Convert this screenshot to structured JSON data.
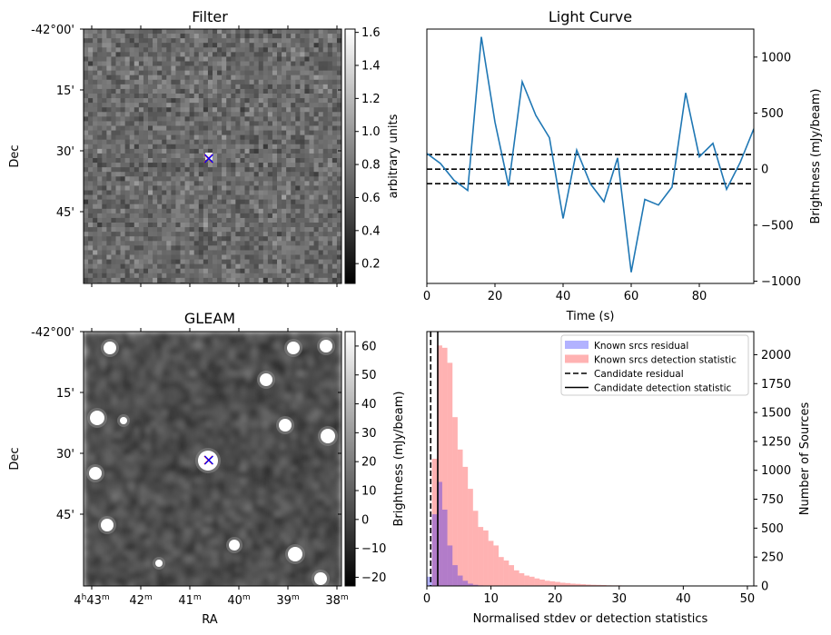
{
  "chart_data": [
    {
      "panel": "filter",
      "type": "heatmap",
      "title": "Filter",
      "xlabel": "",
      "ylabel": "Dec",
      "ytick_labels": [
        "-42°00'",
        "15'",
        "30'",
        "45'"
      ],
      "colorbar_label": "arbitrary units",
      "colorbar_ticks": [
        "0.2",
        "0.4",
        "0.6",
        "0.8",
        "1.0",
        "1.2",
        "1.4",
        "1.6"
      ],
      "colorbar_range": [
        0.08,
        1.62
      ],
      "colormap": "gray",
      "markers": [
        {
          "symbol": "x",
          "color": "#ff0000",
          "label": "red cross"
        },
        {
          "symbol": "x",
          "color": "#0000ff",
          "label": "blue cross"
        }
      ]
    },
    {
      "panel": "light_curve",
      "type": "line",
      "title": "Light Curve",
      "xlabel": "Time (s)",
      "ylabel": "Brightness (mJy/beam)",
      "xlim": [
        0,
        96
      ],
      "ylim": [
        -1020,
        1250
      ],
      "xticks": [
        "0",
        "20",
        "40",
        "60",
        "80"
      ],
      "yticks": [
        "−1000",
        "−500",
        "0",
        "500",
        "1000"
      ],
      "series": [
        {
          "color": "#1f77b4",
          "x": [
            0,
            4,
            8,
            12,
            16,
            20,
            24,
            28,
            32,
            36,
            40,
            44,
            48,
            52,
            56,
            60,
            64,
            68,
            72,
            76,
            80,
            84,
            88,
            92,
            96
          ],
          "y": [
            140,
            50,
            -100,
            -190,
            1180,
            420,
            -150,
            780,
            480,
            280,
            -440,
            170,
            -130,
            -290,
            100,
            -920,
            -270,
            -320,
            -160,
            680,
            110,
            230,
            -180,
            60,
            360
          ]
        }
      ],
      "hlines": [
        {
          "y": 130,
          "style": "dashed",
          "color": "#000000"
        },
        {
          "y": 0,
          "style": "dashed",
          "color": "#000000"
        },
        {
          "y": -130,
          "style": "dashed",
          "color": "#000000"
        }
      ],
      "grid": false
    },
    {
      "panel": "gleam",
      "type": "heatmap",
      "title": "GLEAM",
      "xlabel": "RA",
      "ylabel": "Dec",
      "xtick_labels": [
        {
          "h": "4",
          "hs": "h",
          "m": "43",
          "ms": "m"
        },
        {
          "m": "42",
          "ms": "m"
        },
        {
          "m": "41",
          "ms": "m"
        },
        {
          "m": "40",
          "ms": "m"
        },
        {
          "m": "39",
          "ms": "m"
        },
        {
          "m": "38",
          "ms": "m"
        }
      ],
      "ytick_labels": [
        "-42°00'",
        "15'",
        "30'",
        "45'"
      ],
      "colorbar_label": "Brightness (mJy/beam)",
      "colorbar_ticks": [
        "−20",
        "−10",
        "0",
        "10",
        "20",
        "30",
        "40",
        "50",
        "60"
      ],
      "colorbar_range": [
        -23,
        65
      ],
      "colormap": "gray",
      "markers": [
        {
          "symbol": "x",
          "color": "#ff0000",
          "label": "red cross"
        },
        {
          "symbol": "x",
          "color": "#0000ff",
          "label": "blue cross"
        }
      ]
    },
    {
      "panel": "histogram",
      "type": "bar",
      "title": "",
      "xlabel": "Normalised stdev or detection statistics",
      "ylabel": "Number of Sources",
      "xlim": [
        0,
        51
      ],
      "ylim": [
        0,
        2200
      ],
      "xticks": [
        "0",
        "10",
        "20",
        "30",
        "40",
        "50"
      ],
      "yticks": [
        "0",
        "250",
        "500",
        "750",
        "1000",
        "1250",
        "1500",
        "1750",
        "2000"
      ],
      "bin_width": 0.8,
      "series": [
        {
          "name": "Known srcs residual",
          "color": "#0000ff",
          "alpha": 0.3,
          "bin_start": 0,
          "values": [
            80,
            620,
            900,
            660,
            350,
            180,
            90,
            45,
            20,
            10,
            5,
            3
          ]
        },
        {
          "name": "Known srcs detection statistic",
          "color": "#ff0000",
          "alpha": 0.3,
          "bin_start": 0,
          "values": [
            0,
            1100,
            2080,
            2060,
            1930,
            1460,
            1180,
            1030,
            840,
            650,
            510,
            480,
            390,
            350,
            250,
            220,
            180,
            135,
            110,
            90,
            80,
            65,
            55,
            45,
            40,
            35,
            28,
            25,
            20,
            18,
            15,
            12,
            10,
            9,
            8,
            6,
            5,
            5,
            4,
            4,
            3,
            3,
            2,
            2,
            2,
            2,
            1,
            1,
            1,
            1,
            0,
            0,
            0,
            0,
            0,
            0,
            0,
            0,
            0,
            0,
            0,
            0,
            0
          ]
        }
      ],
      "vlines": [
        {
          "name": "Candidate residual",
          "x": 0.6,
          "style": "dashed",
          "color": "#000000"
        },
        {
          "name": "Candidate detection statistic",
          "x": 1.7,
          "style": "solid",
          "color": "#000000"
        }
      ],
      "legend": "top-right",
      "grid": false
    }
  ]
}
